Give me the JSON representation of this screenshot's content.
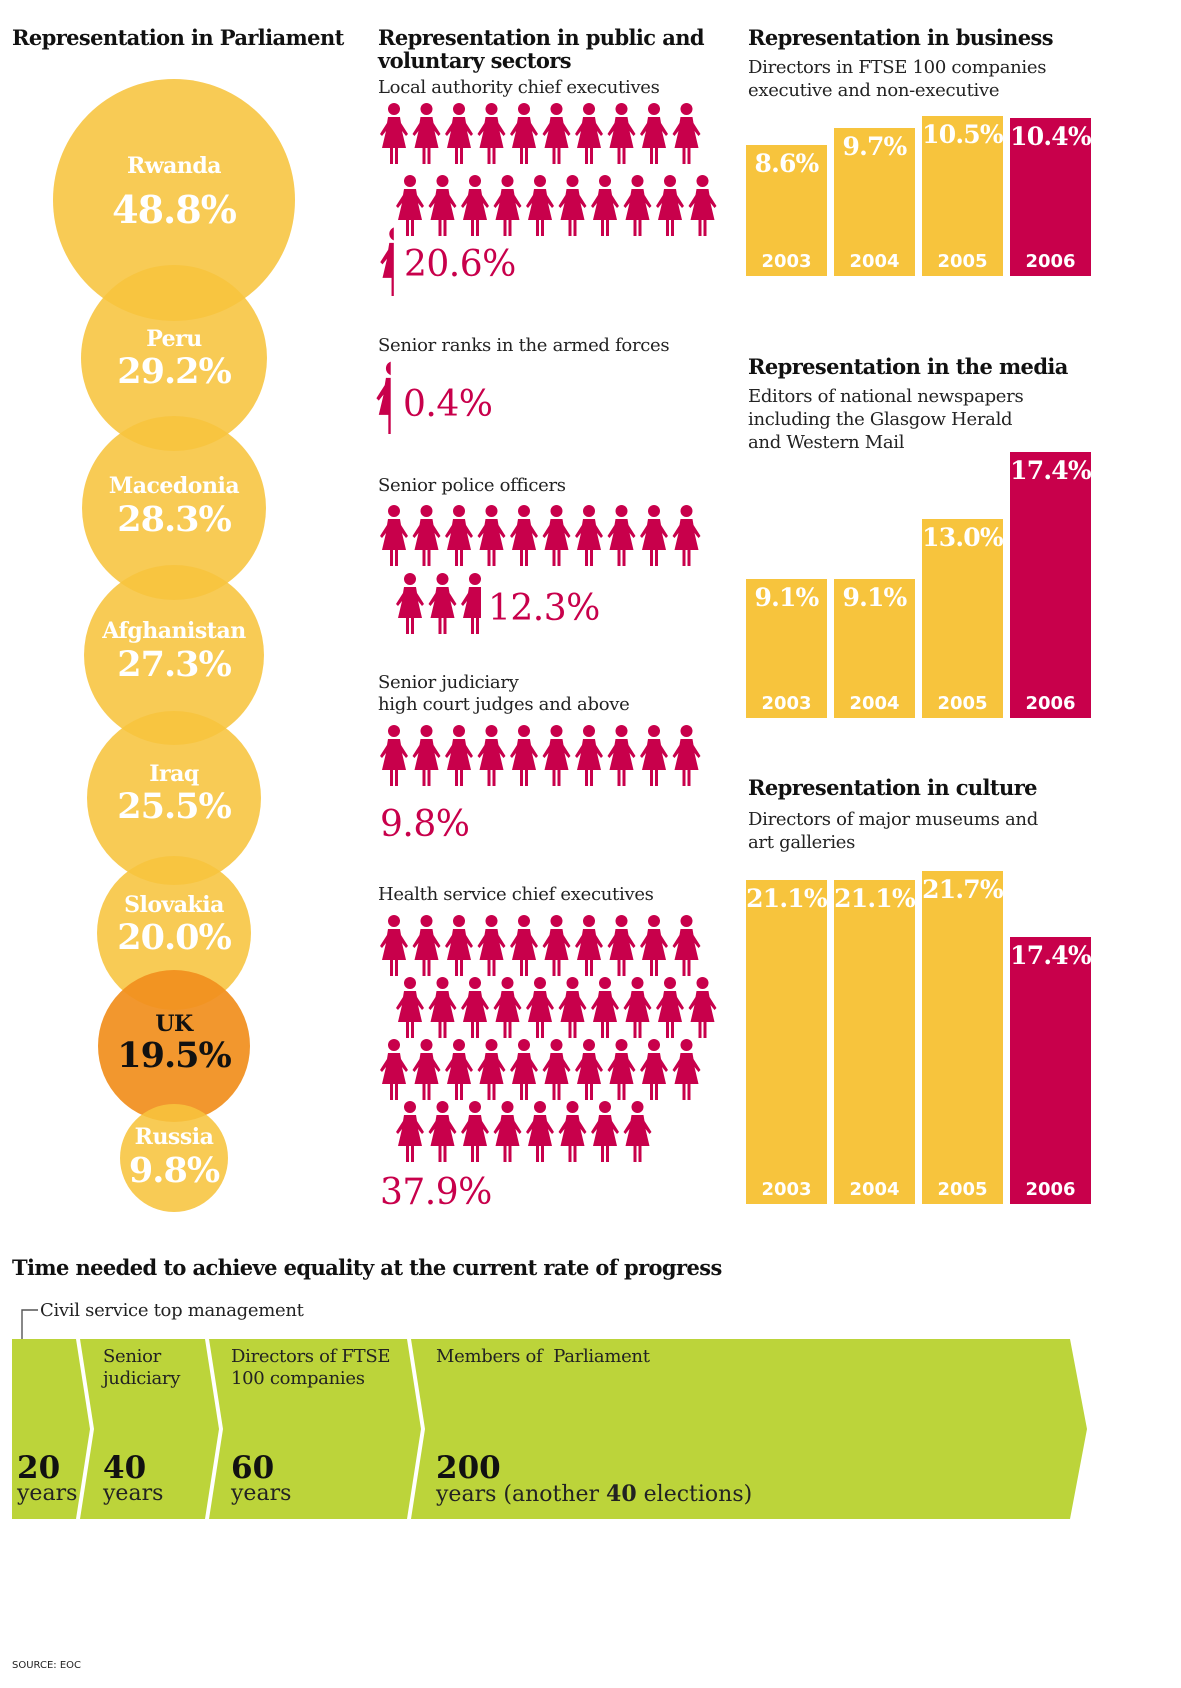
{
  "colors": {
    "yellow": "#f7c43d",
    "orange": "#f18f1e",
    "crimson": "#c8004b",
    "green": "#bcd43a"
  },
  "parliament": {
    "title": "Representation in Parliament",
    "chart_data": {
      "type": "bubble",
      "title": "Representation in Parliament",
      "categories": [
        "Rwanda",
        "Peru",
        "Macedonia",
        "Afghanistan",
        "Iraq",
        "Slovakia",
        "UK",
        "Russia"
      ],
      "values": [
        48.8,
        29.2,
        28.3,
        27.3,
        25.5,
        20.0,
        19.5,
        9.8
      ],
      "labels": [
        "48.8%",
        "29.2%",
        "28.3%",
        "27.3%",
        "25.5%",
        "20.0%",
        "19.5%",
        "9.8%"
      ],
      "highlight": "UK"
    }
  },
  "public": {
    "title": "Representation in public and voluntary sectors",
    "chart_data": {
      "type": "pictogram",
      "groups": [
        {
          "label": "Local authority chief executives",
          "sublabel": "",
          "value": 20.6,
          "text": "20.6%"
        },
        {
          "label": "Senior ranks in the armed forces",
          "sublabel": "",
          "value": 0.4,
          "text": "0.4%"
        },
        {
          "label": "Senior police officers",
          "sublabel": "",
          "value": 12.3,
          "text": "12.3%"
        },
        {
          "label": "Senior judiciary",
          "sublabel": "high court judges and above",
          "value": 9.8,
          "text": "9.8%"
        },
        {
          "label": "Health service chief executives",
          "sublabel": "",
          "value": 37.9,
          "text": "37.9%"
        }
      ]
    }
  },
  "business": {
    "title": "Representation in business",
    "subtitle": "Directors in FTSE 100 companies executive and non-executive",
    "chart_data": {
      "type": "bar",
      "categories": [
        "2003",
        "2004",
        "2005",
        "2006"
      ],
      "values": [
        8.6,
        9.7,
        10.5,
        10.4
      ],
      "labels": [
        "8.6%",
        "9.7%",
        "10.5%",
        "10.4%"
      ]
    }
  },
  "media": {
    "title": "Representation in the media",
    "subtitle": "Editors of national newspapers including the Glasgow Herald and Western Mail",
    "chart_data": {
      "type": "bar",
      "categories": [
        "2003",
        "2004",
        "2005",
        "2006"
      ],
      "values": [
        9.1,
        9.1,
        13.0,
        17.4
      ],
      "labels": [
        "9.1%",
        "9.1%",
        "13.0%",
        "17.4%"
      ]
    }
  },
  "culture": {
    "title": "Representation in culture",
    "subtitle": "Directors of major museums and art galleries",
    "chart_data": {
      "type": "bar",
      "categories": [
        "2003",
        "2004",
        "2005",
        "2006"
      ],
      "values": [
        21.1,
        21.1,
        21.7,
        17.4
      ],
      "labels": [
        "21.1%",
        "21.1%",
        "21.7%",
        "17.4%"
      ]
    }
  },
  "timeline": {
    "title": "Time needed to achieve equality at the current rate of progress",
    "callout": "Civil service top management",
    "chart_data": {
      "type": "bar",
      "segments": [
        {
          "label": "",
          "years": 20,
          "num": "20",
          "unit": "years",
          "extra": "",
          "extra_num": "",
          "extra_end": ""
        },
        {
          "label": "Senior judiciary",
          "years": 40,
          "num": "40",
          "unit": "years",
          "extra": "",
          "extra_num": "",
          "extra_end": ""
        },
        {
          "label": "Directors of FTSE 100 companies",
          "years": 60,
          "num": "60",
          "unit": "years",
          "extra": "",
          "extra_num": "",
          "extra_end": ""
        },
        {
          "label": "Members of  Parliament",
          "years": 200,
          "num": "200",
          "unit": "years (another ",
          "extra": "",
          "extra_num": "40",
          "extra_end": " elections)"
        }
      ]
    }
  },
  "source": "SOURCE: EOC"
}
